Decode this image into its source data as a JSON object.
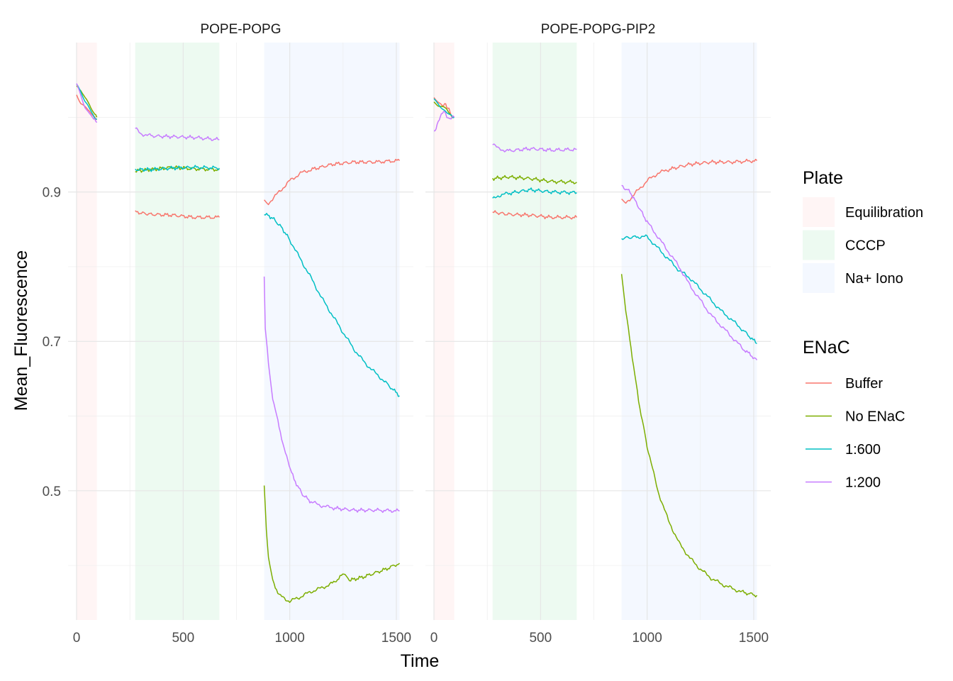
{
  "chart_data": {
    "type": "line",
    "xlabel": "Time",
    "ylabel": "Mean_Fluorescence",
    "xlim": [
      -40,
      1580
    ],
    "ylim": [
      0.327,
      1.1
    ],
    "x_ticks": [
      0,
      500,
      1000,
      1500
    ],
    "y_ticks": [
      0.5,
      0.7,
      0.9
    ],
    "y_tick_labels": [
      "0.5",
      "0.7",
      "0.9"
    ],
    "grid": true,
    "legend_position": "right",
    "plate_legend": {
      "title": "Plate",
      "entries": [
        {
          "name": "Equilibration",
          "range": [
            0,
            95
          ],
          "color": "#F8766D"
        },
        {
          "name": "CCCP",
          "range": [
            275,
            670
          ],
          "color": "#00BA38"
        },
        {
          "name": "Na+ Iono",
          "range": [
            880,
            1515
          ],
          "color": "#619CFF"
        }
      ]
    },
    "series_legend": {
      "title": "ENaC",
      "entries": [
        {
          "name": "Buffer",
          "color": "#F8766D"
        },
        {
          "name": "No ENaC",
          "color": "#7CAE00"
        },
        {
          "name": "1:600",
          "color": "#00BFC4"
        },
        {
          "name": "1:200",
          "color": "#C77CFF"
        }
      ]
    },
    "panels": [
      {
        "title": "POPE-POPG",
        "series": [
          {
            "name": "Buffer",
            "segments": [
              [
                [
                  0,
                  1.03
                ],
                [
                  20,
                  1.02
                ],
                [
                  40,
                  1.015
                ],
                [
                  60,
                  1.01
                ],
                [
                  80,
                  1.0
                ],
                [
                  95,
                  0.998
                ]
              ],
              [
                [
                  275,
                  0.873
                ],
                [
                  350,
                  0.87
                ],
                [
                  450,
                  0.869
                ],
                [
                  550,
                  0.866
                ],
                [
                  670,
                  0.866
                ]
              ],
              [
                [
                  880,
                  0.888
                ],
                [
                  900,
                  0.885
                ],
                [
                  950,
                  0.9
                ],
                [
                  1000,
                  0.915
                ],
                [
                  1050,
                  0.925
                ],
                [
                  1100,
                  0.93
                ],
                [
                  1200,
                  0.937
                ],
                [
                  1300,
                  0.94
                ],
                [
                  1400,
                  0.94
                ],
                [
                  1515,
                  0.942
                ]
              ]
            ]
          },
          {
            "name": "No ENaC",
            "segments": [
              [
                [
                  0,
                  1.04
                ],
                [
                  20,
                  1.035
                ],
                [
                  40,
                  1.025
                ],
                [
                  60,
                  1.018
                ],
                [
                  80,
                  1.008
                ],
                [
                  95,
                  1.0
                ]
              ],
              [
                [
                  275,
                  0.928
                ],
                [
                  350,
                  0.93
                ],
                [
                  450,
                  0.933
                ],
                [
                  550,
                  0.931
                ],
                [
                  670,
                  0.93
                ]
              ],
              [
                [
                  880,
                  0.505
                ],
                [
                  890,
                  0.45
                ],
                [
                  900,
                  0.41
                ],
                [
                  920,
                  0.38
                ],
                [
                  950,
                  0.36
                ],
                [
                  1000,
                  0.352
                ],
                [
                  1050,
                  0.358
                ],
                [
                  1100,
                  0.365
                ],
                [
                  1150,
                  0.37
                ],
                [
                  1200,
                  0.376
                ],
                [
                  1260,
                  0.39
                ],
                [
                  1280,
                  0.38
                ],
                [
                  1350,
                  0.385
                ],
                [
                  1450,
                  0.395
                ],
                [
                  1515,
                  0.403
                ]
              ]
            ]
          },
          {
            "name": "1:600",
            "segments": [
              [
                [
                  0,
                  1.045
                ],
                [
                  20,
                  1.035
                ],
                [
                  40,
                  1.02
                ],
                [
                  60,
                  1.01
                ],
                [
                  80,
                  1.002
                ],
                [
                  95,
                  0.997
                ]
              ],
              [
                [
                  275,
                  0.93
                ],
                [
                  350,
                  0.93
                ],
                [
                  450,
                  0.932
                ],
                [
                  550,
                  0.933
                ],
                [
                  670,
                  0.932
                ]
              ],
              [
                [
                  880,
                  0.871
                ],
                [
                  920,
                  0.865
                ],
                [
                  960,
                  0.853
                ],
                [
                  1000,
                  0.836
                ],
                [
                  1050,
                  0.81
                ],
                [
                  1100,
                  0.785
                ],
                [
                  1150,
                  0.758
                ],
                [
                  1200,
                  0.735
                ],
                [
                  1250,
                  0.712
                ],
                [
                  1300,
                  0.69
                ],
                [
                  1350,
                  0.672
                ],
                [
                  1400,
                  0.658
                ],
                [
                  1450,
                  0.645
                ],
                [
                  1515,
                  0.627
                ]
              ]
            ]
          },
          {
            "name": "1:200",
            "segments": [
              [
                [
                  0,
                  1.045
                ],
                [
                  20,
                  1.03
                ],
                [
                  40,
                  1.015
                ],
                [
                  60,
                  1.005
                ],
                [
                  80,
                  0.998
                ],
                [
                  95,
                  0.993
                ]
              ],
              [
                [
                  275,
                  0.985
                ],
                [
                  300,
                  0.978
                ],
                [
                  350,
                  0.975
                ],
                [
                  450,
                  0.974
                ],
                [
                  550,
                  0.973
                ],
                [
                  670,
                  0.97
                ]
              ],
              [
                [
                  880,
                  0.787
                ],
                [
                  885,
                  0.72
                ],
                [
                  900,
                  0.67
                ],
                [
                  920,
                  0.625
                ],
                [
                  950,
                  0.585
                ],
                [
                  980,
                  0.55
                ],
                [
                  1020,
                  0.515
                ],
                [
                  1060,
                  0.495
                ],
                [
                  1100,
                  0.485
                ],
                [
                  1150,
                  0.48
                ],
                [
                  1200,
                  0.477
                ],
                [
                  1300,
                  0.474
                ],
                [
                  1400,
                  0.474
                ],
                [
                  1515,
                  0.473
                ]
              ]
            ]
          }
        ]
      },
      {
        "title": "POPE-POPG-PIP2",
        "series": [
          {
            "name": "Buffer",
            "segments": [
              [
                [
                  0,
                  1.025
                ],
                [
                  20,
                  1.02
                ],
                [
                  40,
                  1.015
                ],
                [
                  55,
                  1.018
                ],
                [
                  70,
                  1.01
                ],
                [
                  85,
                  1.0
                ],
                [
                  95,
                  1.0
                ]
              ],
              [
                [
                  275,
                  0.873
                ],
                [
                  350,
                  0.87
                ],
                [
                  450,
                  0.869
                ],
                [
                  550,
                  0.866
                ],
                [
                  670,
                  0.866
                ]
              ],
              [
                [
                  880,
                  0.888
                ],
                [
                  900,
                  0.885
                ],
                [
                  950,
                  0.9
                ],
                [
                  1000,
                  0.915
                ],
                [
                  1050,
                  0.925
                ],
                [
                  1100,
                  0.93
                ],
                [
                  1200,
                  0.937
                ],
                [
                  1300,
                  0.94
                ],
                [
                  1400,
                  0.94
                ],
                [
                  1515,
                  0.942
                ]
              ]
            ]
          },
          {
            "name": "No ENaC",
            "segments": [
              [
                [
                  0,
                  1.02
                ],
                [
                  20,
                  1.015
                ],
                [
                  40,
                  1.012
                ],
                [
                  60,
                  1.01
                ],
                [
                  80,
                  1.003
                ],
                [
                  95,
                  1.0
                ]
              ],
              [
                [
                  275,
                  0.918
                ],
                [
                  350,
                  0.92
                ],
                [
                  450,
                  0.918
                ],
                [
                  550,
                  0.914
                ],
                [
                  670,
                  0.913
                ]
              ],
              [
                [
                  880,
                  0.79
                ],
                [
                  900,
                  0.74
                ],
                [
                  930,
                  0.68
                ],
                [
                  960,
                  0.62
                ],
                [
                  1000,
                  0.56
                ],
                [
                  1050,
                  0.5
                ],
                [
                  1100,
                  0.46
                ],
                [
                  1150,
                  0.43
                ],
                [
                  1200,
                  0.41
                ],
                [
                  1250,
                  0.395
                ],
                [
                  1300,
                  0.383
                ],
                [
                  1350,
                  0.375
                ],
                [
                  1400,
                  0.369
                ],
                [
                  1450,
                  0.364
                ],
                [
                  1515,
                  0.36
                ]
              ]
            ]
          },
          {
            "name": "1:600",
            "segments": [
              [
                [
                  0,
                  1.025
                ],
                [
                  20,
                  1.02
                ],
                [
                  40,
                  1.012
                ],
                [
                  60,
                  1.005
                ],
                [
                  80,
                  1.003
                ],
                [
                  95,
                  1.0
                ]
              ],
              [
                [
                  275,
                  0.89
                ],
                [
                  300,
                  0.895
                ],
                [
                  350,
                  0.898
                ],
                [
                  450,
                  0.903
                ],
                [
                  550,
                  0.9
                ],
                [
                  670,
                  0.899
                ]
              ],
              [
                [
                  880,
                  0.838
                ],
                [
                  950,
                  0.84
                ],
                [
                  1000,
                  0.84
                ],
                [
                  1050,
                  0.825
                ],
                [
                  1100,
                  0.81
                ],
                [
                  1150,
                  0.795
                ],
                [
                  1200,
                  0.785
                ],
                [
                  1250,
                  0.77
                ],
                [
                  1300,
                  0.755
                ],
                [
                  1350,
                  0.74
                ],
                [
                  1400,
                  0.728
                ],
                [
                  1450,
                  0.715
                ],
                [
                  1515,
                  0.697
                ]
              ]
            ]
          },
          {
            "name": "1:200",
            "segments": [
              [
                [
                  0,
                  0.98
                ],
                [
                  15,
                  0.99
                ],
                [
                  30,
                  1.0
                ],
                [
                  45,
                  1.01
                ],
                [
                  60,
                  1.0
                ],
                [
                  80,
                  1.0
                ],
                [
                  95,
                  1.0
                ]
              ],
              [
                [
                  275,
                  0.965
                ],
                [
                  300,
                  0.958
                ],
                [
                  350,
                  0.955
                ],
                [
                  450,
                  0.958
                ],
                [
                  550,
                  0.956
                ],
                [
                  670,
                  0.957
                ]
              ],
              [
                [
                  880,
                  0.908
                ],
                [
                  920,
                  0.9
                ],
                [
                  960,
                  0.88
                ],
                [
                  1000,
                  0.86
                ],
                [
                  1050,
                  0.84
                ],
                [
                  1100,
                  0.82
                ],
                [
                  1150,
                  0.8
                ],
                [
                  1200,
                  0.775
                ],
                [
                  1250,
                  0.755
                ],
                [
                  1300,
                  0.735
                ],
                [
                  1350,
                  0.72
                ],
                [
                  1400,
                  0.705
                ],
                [
                  1450,
                  0.69
                ],
                [
                  1515,
                  0.675
                ]
              ]
            ]
          }
        ]
      }
    ]
  }
}
